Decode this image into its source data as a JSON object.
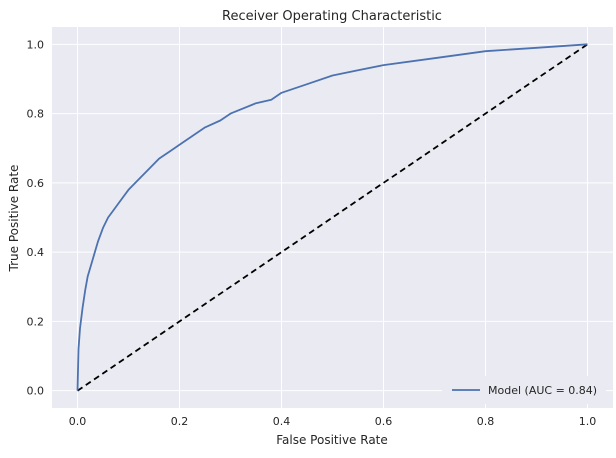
{
  "chart_data": {
    "type": "line",
    "title": "Receiver Operating Characteristic",
    "xlabel": "False Positive Rate",
    "ylabel": "True Positive Rate",
    "xlim": [
      -0.05,
      1.05
    ],
    "ylim": [
      -0.05,
      1.05
    ],
    "xticks": [
      0.0,
      0.2,
      0.4,
      0.6,
      0.8,
      1.0
    ],
    "xtick_labels": [
      "0.0",
      "0.2",
      "0.4",
      "0.6",
      "0.8",
      "1.0"
    ],
    "yticks": [
      0.0,
      0.2,
      0.4,
      0.6,
      0.8,
      1.0
    ],
    "ytick_labels": [
      "0.0",
      "0.2",
      "0.4",
      "0.6",
      "0.8",
      "1.0"
    ],
    "grid": true,
    "legend_position": "bottom-right",
    "series": [
      {
        "name": "Model (AUC = 0.84)",
        "color": "#4c72b0",
        "style": "solid",
        "x": [
          0.0,
          0.002,
          0.005,
          0.01,
          0.015,
          0.02,
          0.03,
          0.04,
          0.05,
          0.06,
          0.07,
          0.08,
          0.1,
          0.12,
          0.14,
          0.16,
          0.18,
          0.2,
          0.25,
          0.28,
          0.3,
          0.35,
          0.38,
          0.4,
          0.45,
          0.5,
          0.55,
          0.6,
          0.7,
          0.8,
          0.9,
          1.0
        ],
        "y": [
          0.0,
          0.12,
          0.18,
          0.24,
          0.29,
          0.33,
          0.38,
          0.43,
          0.47,
          0.5,
          0.52,
          0.54,
          0.58,
          0.61,
          0.64,
          0.67,
          0.69,
          0.71,
          0.76,
          0.78,
          0.8,
          0.83,
          0.84,
          0.86,
          0.885,
          0.91,
          0.925,
          0.94,
          0.96,
          0.98,
          0.99,
          1.0
        ]
      },
      {
        "name": "",
        "color": "#000000",
        "style": "dashed",
        "x": [
          0.0,
          1.0
        ],
        "y": [
          0.0,
          1.0
        ]
      }
    ]
  }
}
